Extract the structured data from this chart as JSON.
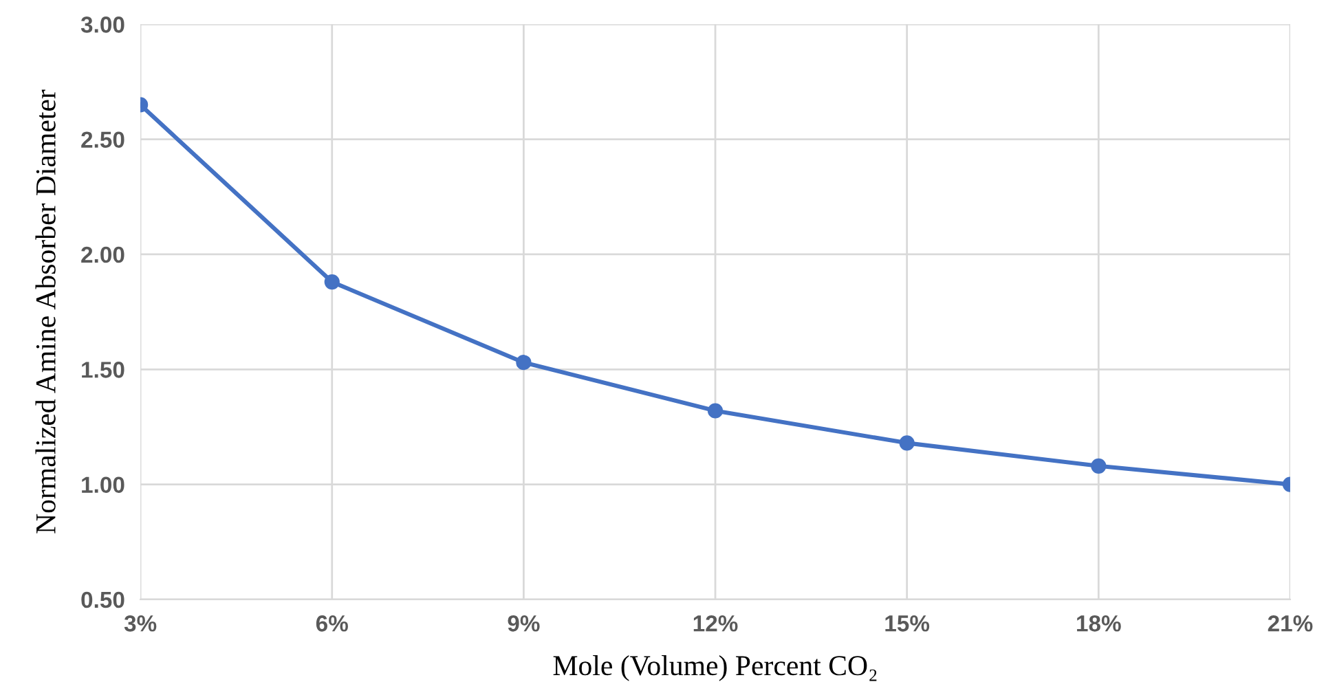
{
  "chart_data": {
    "type": "line",
    "xlabel": "Mole (Volume) Percent CO₂",
    "ylabel": "Normalized Amine Absorber Diameter",
    "categories": [
      "3%",
      "6%",
      "9%",
      "12%",
      "15%",
      "18%",
      "21%"
    ],
    "series": [
      {
        "color": "#4472c4",
        "values": [
          2.65,
          1.88,
          1.53,
          1.32,
          1.18,
          1.08,
          1.0
        ]
      }
    ],
    "ylim": [
      0.5,
      3.0
    ],
    "yticks": [
      {
        "value": 0.5,
        "label": "0.50"
      },
      {
        "value": 1.0,
        "label": "1.00"
      },
      {
        "value": 1.5,
        "label": "1.50"
      },
      {
        "value": 2.0,
        "label": "2.00"
      },
      {
        "value": 2.5,
        "label": "2.50"
      },
      {
        "value": 3.0,
        "label": "3.00"
      }
    ],
    "grid": true,
    "marker": "circle",
    "line_style": "solid",
    "legend": false
  }
}
